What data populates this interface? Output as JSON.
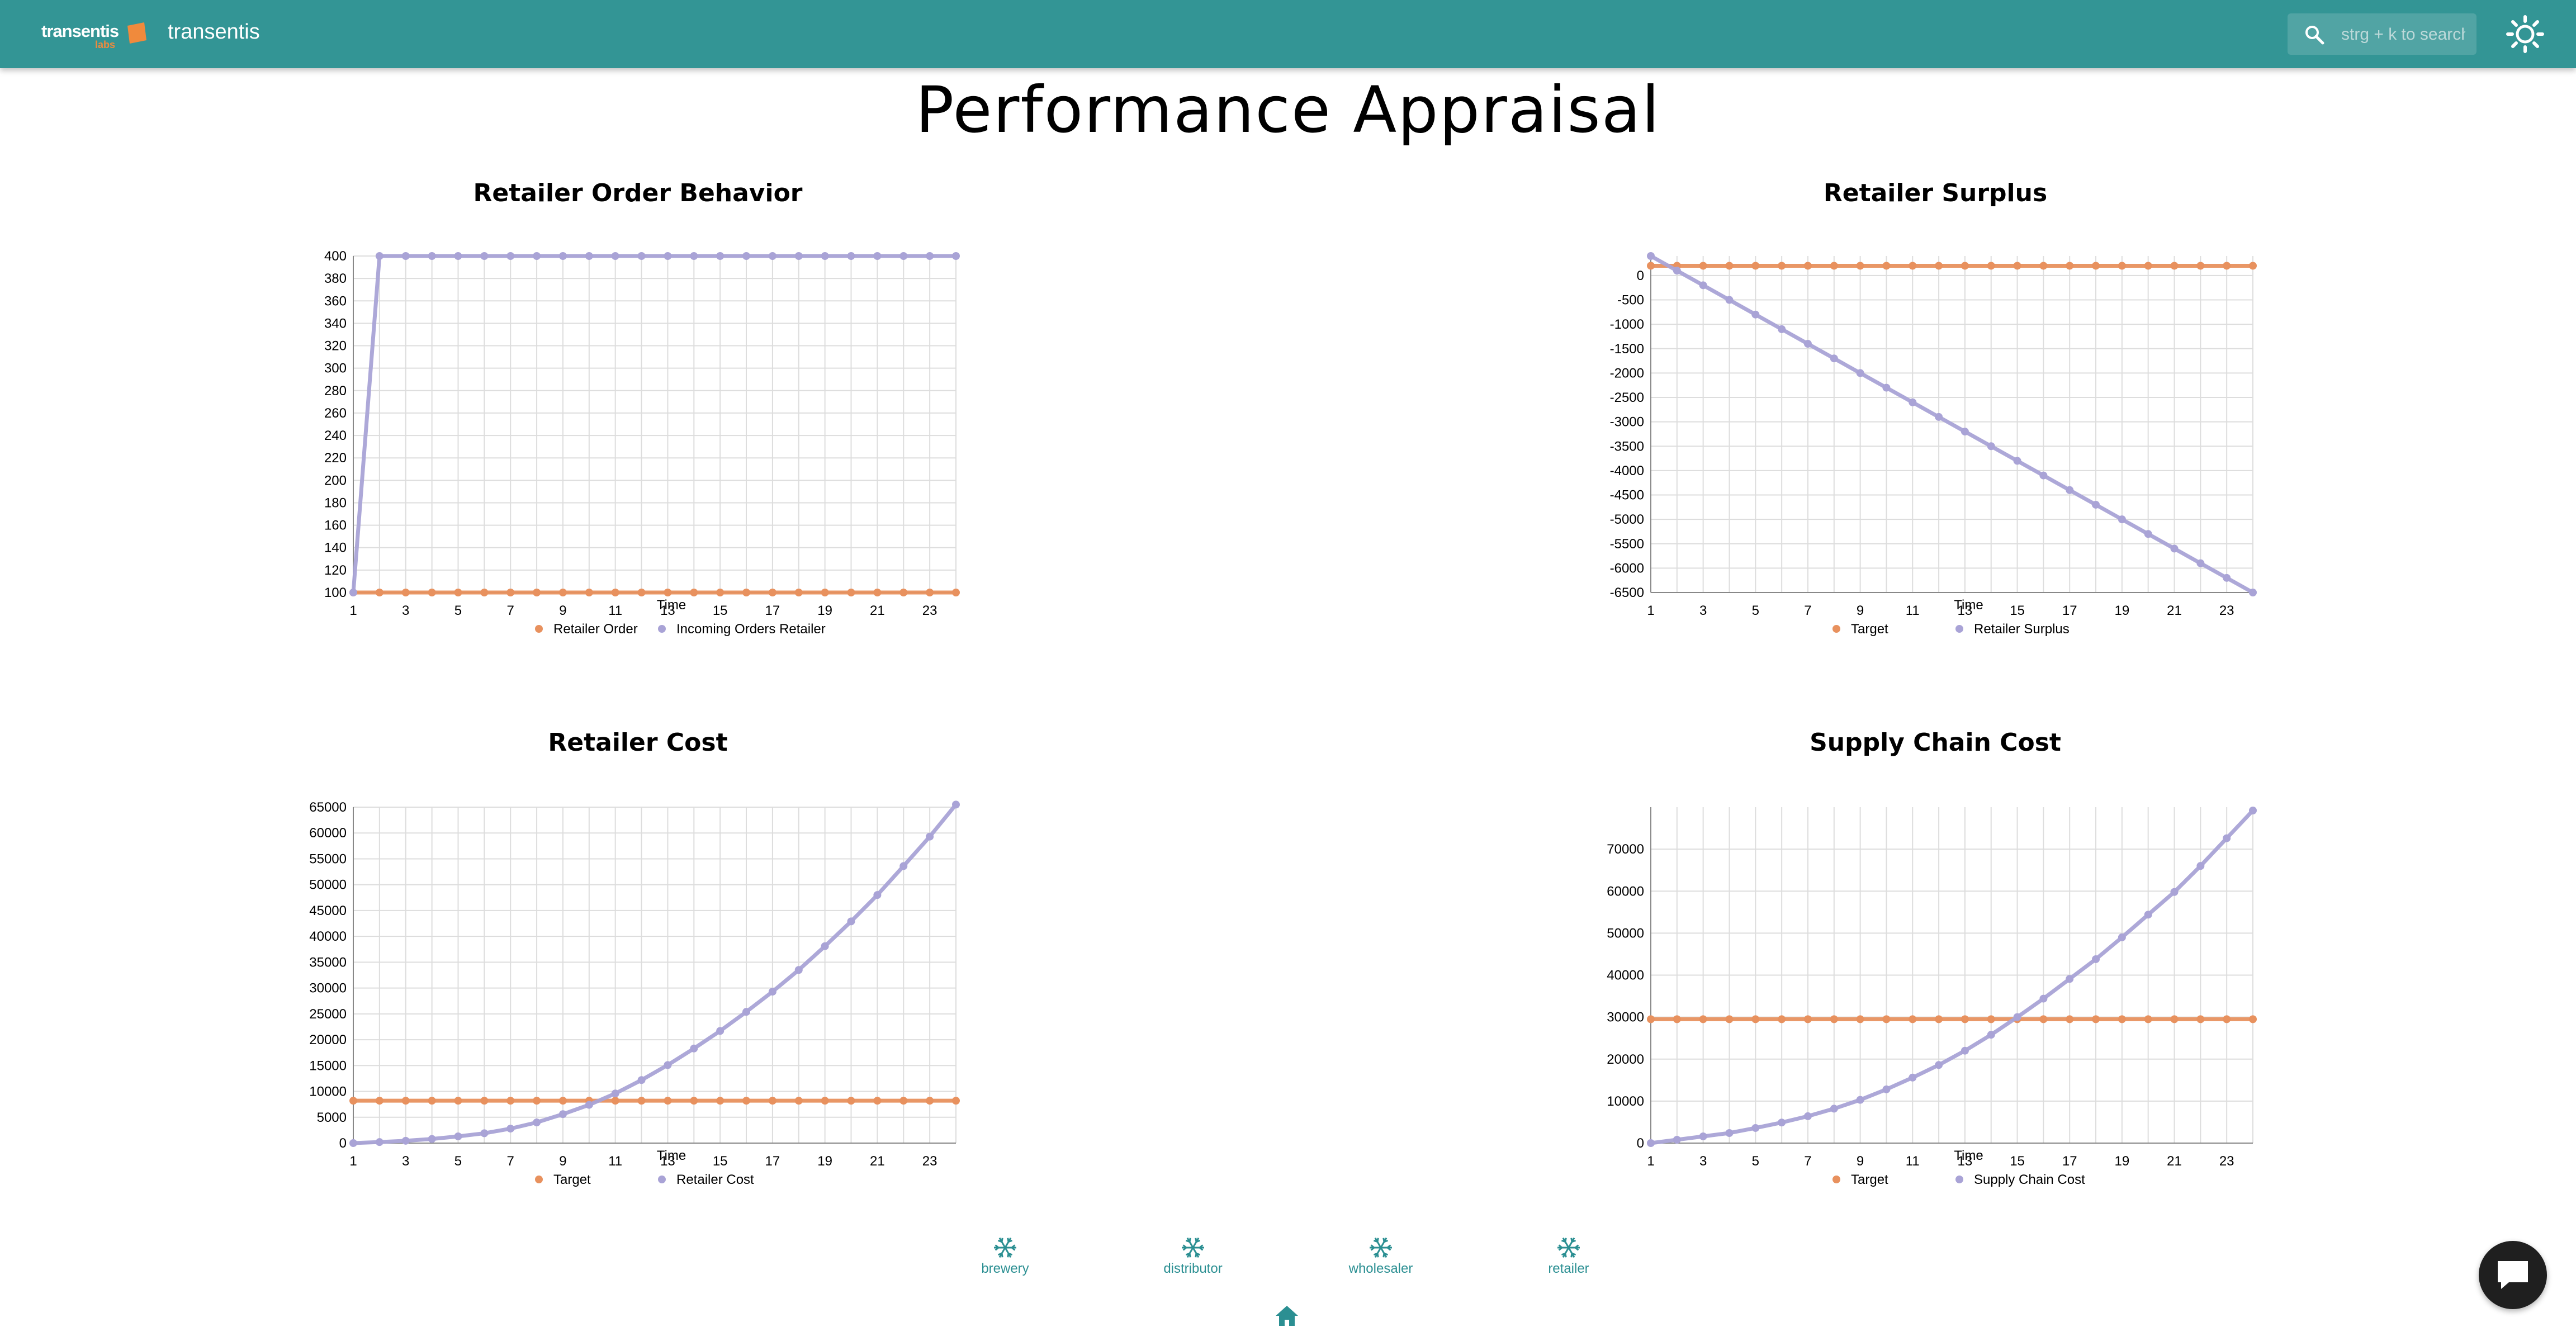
{
  "header": {
    "logo_text": "transentis",
    "logo_sub": "labs",
    "app_title": "transentis",
    "search_placeholder": "strg + k to search"
  },
  "page": {
    "title": "Performance Appraisal"
  },
  "colors": {
    "target": "#e8915e",
    "series": "#a9a3d6",
    "teal": "#339595",
    "nav": "#2b8f92"
  },
  "nav": {
    "items": [
      {
        "label": "brewery",
        "icon": "snowflake-icon"
      },
      {
        "label": "distributor",
        "icon": "snowflake-icon"
      },
      {
        "label": "wholesaler",
        "icon": "snowflake-icon"
      },
      {
        "label": "retailer",
        "icon": "snowflake-icon"
      }
    ],
    "home_icon": "home-icon",
    "chat_icon": "chat-icon"
  },
  "chart_data": [
    {
      "type": "line",
      "title": "Retailer Order Behavior",
      "xlabel": "Time",
      "ylabel": "",
      "xlim": [
        1,
        24
      ],
      "xticks": [
        1,
        3,
        5,
        7,
        9,
        11,
        13,
        15,
        17,
        19,
        21,
        23
      ],
      "ylim": [
        100,
        400
      ],
      "yticks": [
        100,
        120,
        140,
        160,
        180,
        200,
        220,
        240,
        260,
        280,
        300,
        320,
        340,
        360,
        380,
        400
      ],
      "x": [
        1,
        2,
        3,
        4,
        5,
        6,
        7,
        8,
        9,
        10,
        11,
        12,
        13,
        14,
        15,
        16,
        17,
        18,
        19,
        20,
        21,
        22,
        23,
        24
      ],
      "series": [
        {
          "name": "Retailer Order",
          "color": "#e8915e",
          "values": [
            100,
            100,
            100,
            100,
            100,
            100,
            100,
            100,
            100,
            100,
            100,
            100,
            100,
            100,
            100,
            100,
            100,
            100,
            100,
            100,
            100,
            100,
            100,
            100
          ]
        },
        {
          "name": "Incoming Orders Retailer",
          "color": "#a9a3d6",
          "values": [
            100,
            400,
            400,
            400,
            400,
            400,
            400,
            400,
            400,
            400,
            400,
            400,
            400,
            400,
            400,
            400,
            400,
            400,
            400,
            400,
            400,
            400,
            400,
            400
          ]
        }
      ]
    },
    {
      "type": "line",
      "title": "Retailer Surplus",
      "xlabel": "Time",
      "ylabel": "",
      "xlim": [
        1,
        24
      ],
      "xticks": [
        1,
        3,
        5,
        7,
        9,
        11,
        13,
        15,
        17,
        19,
        21,
        23
      ],
      "ylim": [
        -6500,
        400
      ],
      "yticks": [
        0,
        -500,
        -1000,
        -1500,
        -2000,
        -2500,
        -3000,
        -3500,
        -4000,
        -4500,
        -5000,
        -5500,
        -6000,
        -6500
      ],
      "x": [
        1,
        2,
        3,
        4,
        5,
        6,
        7,
        8,
        9,
        10,
        11,
        12,
        13,
        14,
        15,
        16,
        17,
        18,
        19,
        20,
        21,
        22,
        23,
        24
      ],
      "series": [
        {
          "name": "Target",
          "color": "#e8915e",
          "values": [
            200,
            200,
            200,
            200,
            200,
            200,
            200,
            200,
            200,
            200,
            200,
            200,
            200,
            200,
            200,
            200,
            200,
            200,
            200,
            200,
            200,
            200,
            200,
            200
          ]
        },
        {
          "name": "Retailer Surplus",
          "color": "#a9a3d6",
          "values": [
            400,
            100,
            -200,
            -500,
            -800,
            -1100,
            -1400,
            -1700,
            -2000,
            -2300,
            -2600,
            -2900,
            -3200,
            -3500,
            -3800,
            -4100,
            -4400,
            -4700,
            -5000,
            -5300,
            -5600,
            -5900,
            -6200,
            -6500
          ]
        }
      ]
    },
    {
      "type": "line",
      "title": "Retailer Cost",
      "xlabel": "Time",
      "ylabel": "",
      "xlim": [
        1,
        24
      ],
      "xticks": [
        1,
        3,
        5,
        7,
        9,
        11,
        13,
        15,
        17,
        19,
        21,
        23
      ],
      "ylim": [
        0,
        65000
      ],
      "yticks": [
        0,
        5000,
        10000,
        15000,
        20000,
        25000,
        30000,
        35000,
        40000,
        45000,
        50000,
        55000,
        60000,
        65000
      ],
      "x": [
        1,
        2,
        3,
        4,
        5,
        6,
        7,
        8,
        9,
        10,
        11,
        12,
        13,
        14,
        15,
        16,
        17,
        18,
        19,
        20,
        21,
        22,
        23,
        24
      ],
      "series": [
        {
          "name": "Target",
          "color": "#e8915e",
          "values": [
            8200,
            8200,
            8200,
            8200,
            8200,
            8200,
            8200,
            8200,
            8200,
            8200,
            8200,
            8200,
            8200,
            8200,
            8200,
            8200,
            8200,
            8200,
            8200,
            8200,
            8200,
            8200,
            8200,
            8200
          ]
        },
        {
          "name": "Retailer Cost",
          "color": "#a9a3d6",
          "values": [
            0,
            200,
            450,
            800,
            1300,
            1900,
            2800,
            4000,
            5600,
            7400,
            9600,
            12200,
            15100,
            18300,
            21700,
            25400,
            29300,
            33500,
            38100,
            42900,
            48000,
            53600,
            59300,
            65500
          ]
        }
      ]
    },
    {
      "type": "line",
      "title": "Supply Chain Cost",
      "xlabel": "Time",
      "ylabel": "",
      "xlim": [
        1,
        24
      ],
      "xticks": [
        1,
        3,
        5,
        7,
        9,
        11,
        13,
        15,
        17,
        19,
        21,
        23
      ],
      "ylim": [
        0,
        80000
      ],
      "yticks": [
        0,
        10000,
        20000,
        30000,
        40000,
        50000,
        60000,
        70000
      ],
      "x": [
        1,
        2,
        3,
        4,
        5,
        6,
        7,
        8,
        9,
        10,
        11,
        12,
        13,
        14,
        15,
        16,
        17,
        18,
        19,
        20,
        21,
        22,
        23,
        24
      ],
      "series": [
        {
          "name": "Target",
          "color": "#e8915e",
          "values": [
            29500,
            29500,
            29500,
            29500,
            29500,
            29500,
            29500,
            29500,
            29500,
            29500,
            29500,
            29500,
            29500,
            29500,
            29500,
            29500,
            29500,
            29500,
            29500,
            29500,
            29500,
            29500,
            29500,
            29500
          ]
        },
        {
          "name": "Supply Chain Cost",
          "color": "#a9a3d6",
          "values": [
            0,
            800,
            1600,
            2400,
            3600,
            4900,
            6400,
            8200,
            10300,
            12800,
            15600,
            18600,
            22000,
            25800,
            30000,
            34400,
            39100,
            43800,
            49000,
            54400,
            59800,
            66000,
            72600,
            79200
          ]
        }
      ]
    }
  ]
}
